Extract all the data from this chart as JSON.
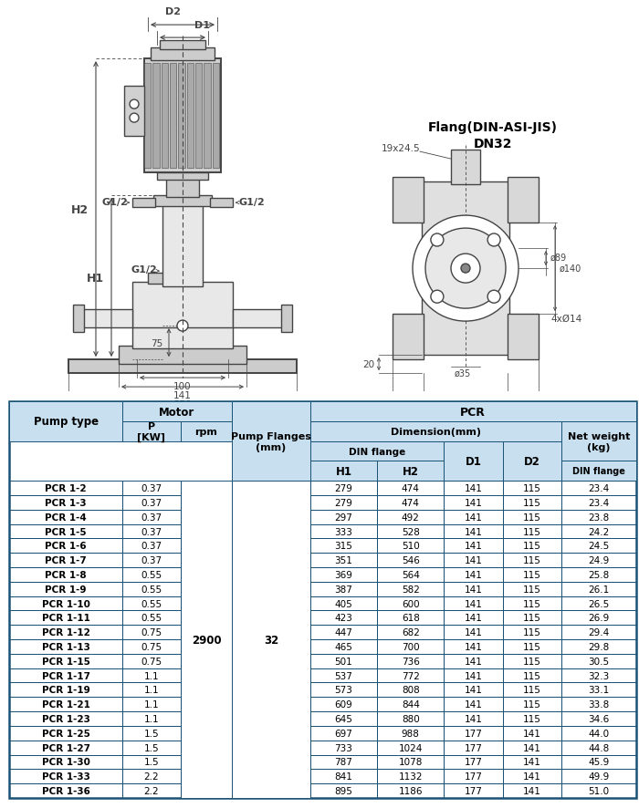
{
  "rows": [
    [
      "PCR 1-2",
      "0.37",
      "279",
      "474",
      "141",
      "115",
      "23.4"
    ],
    [
      "PCR 1-3",
      "0.37",
      "279",
      "474",
      "141",
      "115",
      "23.4"
    ],
    [
      "PCR 1-4",
      "0.37",
      "297",
      "492",
      "141",
      "115",
      "23.8"
    ],
    [
      "PCR 1-5",
      "0.37",
      "333",
      "528",
      "141",
      "115",
      "24.2"
    ],
    [
      "PCR 1-6",
      "0.37",
      "315",
      "510",
      "141",
      "115",
      "24.5"
    ],
    [
      "PCR 1-7",
      "0.37",
      "351",
      "546",
      "141",
      "115",
      "24.9"
    ],
    [
      "PCR 1-8",
      "0.55",
      "369",
      "564",
      "141",
      "115",
      "25.8"
    ],
    [
      "PCR 1-9",
      "0.55",
      "387",
      "582",
      "141",
      "115",
      "26.1"
    ],
    [
      "PCR 1-10",
      "0.55",
      "405",
      "600",
      "141",
      "115",
      "26.5"
    ],
    [
      "PCR 1-11",
      "0.55",
      "423",
      "618",
      "141",
      "115",
      "26.9"
    ],
    [
      "PCR 1-12",
      "0.75",
      "447",
      "682",
      "141",
      "115",
      "29.4"
    ],
    [
      "PCR 1-13",
      "0.75",
      "465",
      "700",
      "141",
      "115",
      "29.8"
    ],
    [
      "PCR 1-15",
      "0.75",
      "501",
      "736",
      "141",
      "115",
      "30.5"
    ],
    [
      "PCR 1-17",
      "1.1",
      "537",
      "772",
      "141",
      "115",
      "32.3"
    ],
    [
      "PCR 1-19",
      "1.1",
      "573",
      "808",
      "141",
      "115",
      "33.1"
    ],
    [
      "PCR 1-21",
      "1.1",
      "609",
      "844",
      "141",
      "115",
      "33.8"
    ],
    [
      "PCR 1-23",
      "1.1",
      "645",
      "880",
      "141",
      "115",
      "34.6"
    ],
    [
      "PCR 1-25",
      "1.5",
      "697",
      "988",
      "177",
      "141",
      "44.0"
    ],
    [
      "PCR 1-27",
      "1.5",
      "733",
      "1024",
      "177",
      "141",
      "44.8"
    ],
    [
      "PCR 1-30",
      "1.5",
      "787",
      "1078",
      "177",
      "141",
      "45.9"
    ],
    [
      "PCR 1-33",
      "2.2",
      "841",
      "1132",
      "177",
      "141",
      "49.9"
    ],
    [
      "PCR 1-36",
      "2.2",
      "895",
      "1186",
      "177",
      "141",
      "51.0"
    ]
  ],
  "bg_color": "#ffffff",
  "header_bg": "#c8dff0",
  "border_color": "#1a5276",
  "line_color": "#333333",
  "diagram_line": "#444444"
}
